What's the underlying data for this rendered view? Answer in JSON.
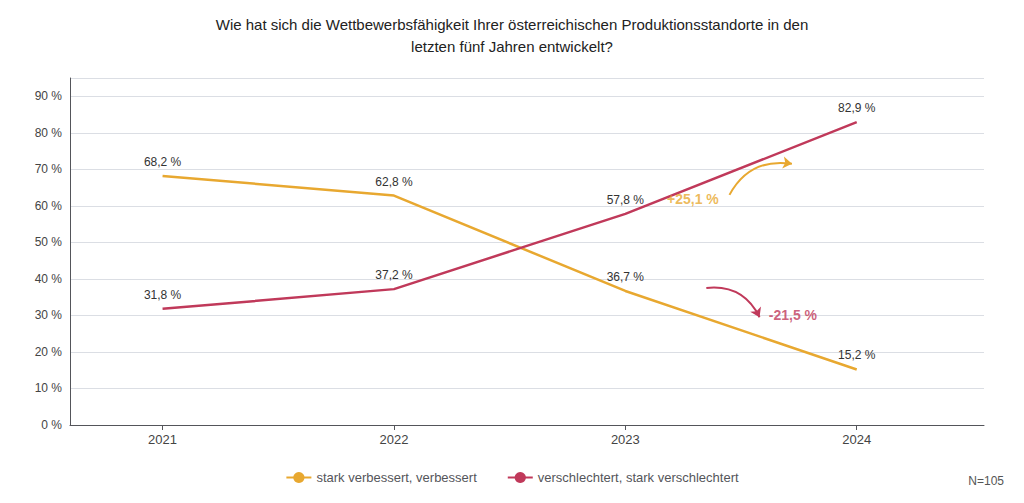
{
  "chart_data": {
    "type": "line",
    "title": "Wie hat sich die Wettbewerbsfähigkeit Ihrer österreichischen Produktionsstandorte in den\nletzten fünf Jahren entwickelt?",
    "x": [
      2021,
      2022,
      2023,
      2024
    ],
    "xlim": [
      2020.6,
      2024.55
    ],
    "xticks": [
      2021,
      2022,
      2023,
      2024
    ],
    "ylim": [
      0,
      95
    ],
    "yticks": [
      {
        "value": 0,
        "label": "0 %"
      },
      {
        "value": 10,
        "label": "10 %"
      },
      {
        "value": 20,
        "label": "20 %"
      },
      {
        "value": 30,
        "label": "30 %"
      },
      {
        "value": 40,
        "label": "40 %"
      },
      {
        "value": 50,
        "label": "50 %"
      },
      {
        "value": 60,
        "label": "60 %"
      },
      {
        "value": 70,
        "label": "70 %"
      },
      {
        "value": 80,
        "label": "80 %"
      },
      {
        "value": 90,
        "label": "90 %"
      }
    ],
    "grid": true,
    "legend": "bottom",
    "data_labels": true,
    "series": [
      {
        "name": "stark verbessert, verbessert",
        "color": "#E8A830",
        "values": [
          68.2,
          62.8,
          36.7,
          15.2
        ],
        "value_labels": [
          "68,2 %",
          "62,8 %",
          "36,7 %",
          "15,2 %"
        ]
      },
      {
        "name": "verschlechtert, stark verschlechtert",
        "color": "#C0395A",
        "values": [
          31.8,
          37.2,
          57.8,
          82.9
        ],
        "value_labels": [
          "31,8 %",
          "37,2 %",
          "57,8 %",
          "82,9 %"
        ]
      }
    ],
    "annotations": [
      {
        "text": "+25,1 %",
        "x": 2023.18,
        "y": 62.0,
        "color": "#E8A830",
        "arrow_from": [
          2023.45,
          63
        ],
        "arrow_to": [
          2023.72,
          71.5
        ]
      },
      {
        "text": "-21,5 %",
        "x": 2023.62,
        "y": 30.0,
        "color": "#C0395A",
        "arrow_from": [
          2023.35,
          37.5
        ],
        "arrow_to": [
          2023.58,
          29.5
        ]
      }
    ],
    "note": "N=105"
  }
}
